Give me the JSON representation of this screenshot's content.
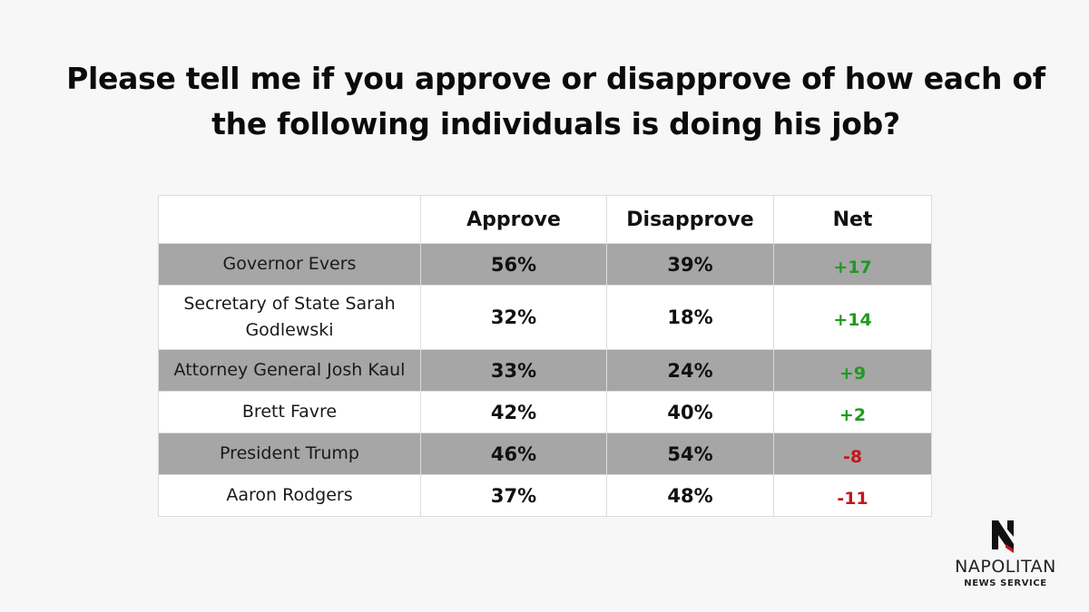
{
  "title": "Please tell me if you approve or disapprove of how each of the following individuals is doing his job?",
  "colors": {
    "positive": "#1f9a1f",
    "negative": "#c4161c",
    "row_shade": "#a6a6a6",
    "row_plain": "#ffffff"
  },
  "chart_data": {
    "type": "table",
    "title": "Please tell me if you approve or disapprove of how each of the following individuals is doing his job?",
    "columns": [
      "",
      "Approve",
      "Disapprove",
      "Net"
    ],
    "rows": [
      {
        "name": "Governor Evers",
        "approve": "56%",
        "disapprove": "39%",
        "net": "+17"
      },
      {
        "name": "Secretary of State Sarah Godlewski",
        "approve": "32%",
        "disapprove": "18%",
        "net": "+14"
      },
      {
        "name": "Attorney General Josh Kaul",
        "approve": "33%",
        "disapprove": "24%",
        "net": "+9"
      },
      {
        "name": "Brett Favre",
        "approve": "42%",
        "disapprove": "40%",
        "net": "+2"
      },
      {
        "name": "President Trump",
        "approve": "46%",
        "disapprove": "54%",
        "net": "-8"
      },
      {
        "name": "Aaron Rodgers",
        "approve": "37%",
        "disapprove": "48%",
        "net": "-11"
      }
    ]
  },
  "logo": {
    "name": "NAPOLITAN",
    "subtitle": "NEWS SERVICE",
    "icon": "napolitan-n-icon"
  }
}
